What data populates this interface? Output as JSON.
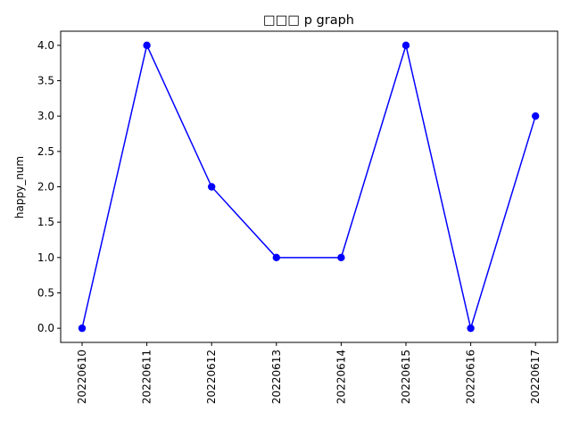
{
  "chart_data": {
    "type": "line",
    "title": "□□□ p graph",
    "xlabel": "",
    "ylabel": "happy_num",
    "categories": [
      "20220610",
      "20220611",
      "20220612",
      "20220613",
      "20220614",
      "20220615",
      "20220616",
      "20220617"
    ],
    "series": [
      {
        "values": [
          0,
          4,
          2,
          1,
          1,
          4,
          0,
          3
        ],
        "color": "#0000ff",
        "marker": "circle"
      }
    ],
    "ylim": [
      -0.2,
      4.2
    ],
    "yticks": [
      "0.0",
      "0.5",
      "1.0",
      "1.5",
      "2.0",
      "2.5",
      "3.0",
      "3.5",
      "4.0"
    ],
    "grid": false,
    "legend": "none"
  }
}
